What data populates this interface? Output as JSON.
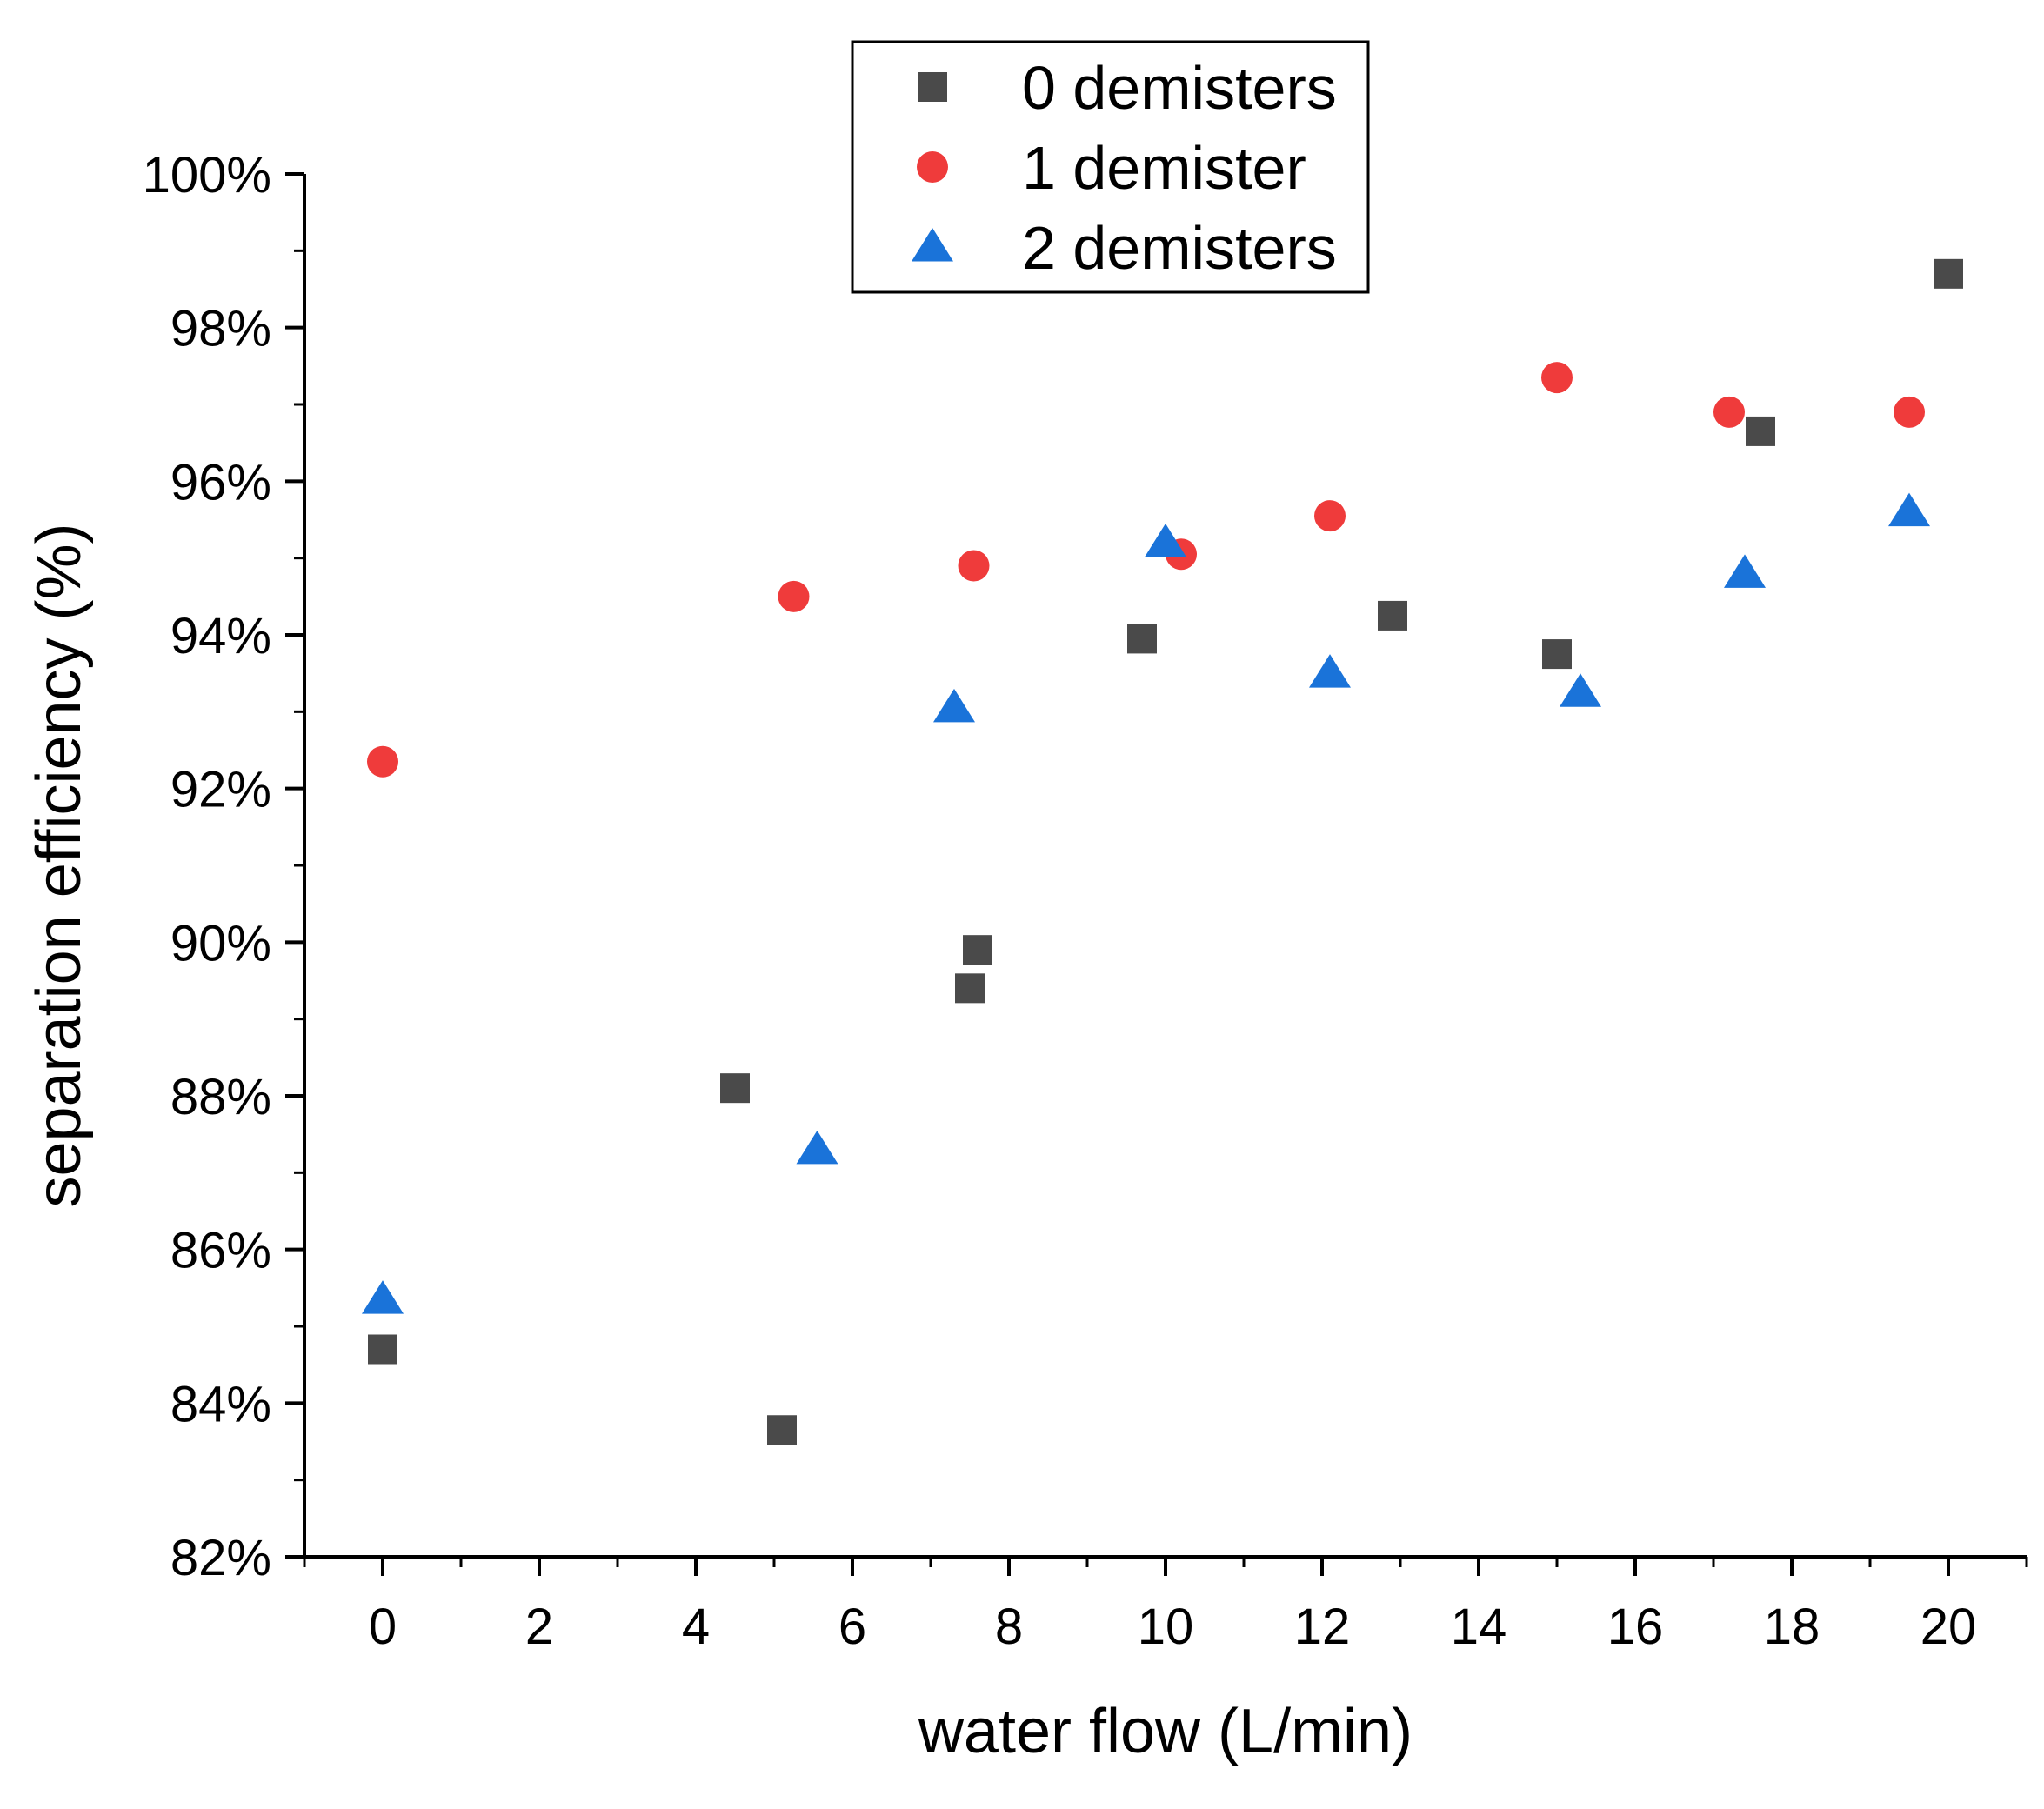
{
  "chart_data": {
    "type": "scatter",
    "title": "",
    "xlabel": "water flow (L/min)",
    "ylabel": "separation efficiency (%)",
    "xlim": [
      -1,
      21
    ],
    "ylim": [
      82,
      100
    ],
    "x_ticks": [
      0,
      2,
      4,
      6,
      8,
      10,
      12,
      14,
      16,
      18,
      20
    ],
    "x_tick_labels": [
      "0",
      "2",
      "4",
      "6",
      "8",
      "10",
      "12",
      "14",
      "16",
      "18",
      "20"
    ],
    "y_ticks": [
      82,
      84,
      86,
      88,
      90,
      92,
      94,
      96,
      98,
      100
    ],
    "y_tick_labels": [
      "82%",
      "84%",
      "86%",
      "88%",
      "90%",
      "92%",
      "94%",
      "96%",
      "98%",
      "100%"
    ],
    "legend_position": "top-center",
    "grid": false,
    "series": [
      {
        "name": "0 demisters",
        "marker": "square",
        "color": "#4a4a4a",
        "x": [
          0,
          4.5,
          5.1,
          7.5,
          7.6,
          9.7,
          12.9,
          15.0,
          17.6,
          20.0
        ],
        "y": [
          84.7,
          88.1,
          83.65,
          89.4,
          89.9,
          93.95,
          94.25,
          93.75,
          96.65,
          98.7
        ]
      },
      {
        "name": "1 demister",
        "marker": "circle",
        "color": "#ef3b3b",
        "x": [
          0,
          5.25,
          7.55,
          10.2,
          12.1,
          15.0,
          17.2,
          19.5
        ],
        "y": [
          92.35,
          94.5,
          94.9,
          95.05,
          95.55,
          97.35,
          96.9,
          96.9
        ]
      },
      {
        "name": "2 demisters",
        "marker": "triangle",
        "color": "#1a73d9",
        "x": [
          0,
          5.55,
          7.3,
          10.0,
          12.1,
          15.3,
          17.4,
          19.5
        ],
        "y": [
          85.35,
          87.3,
          93.05,
          95.2,
          93.5,
          93.25,
          94.8,
          95.6
        ]
      }
    ]
  }
}
